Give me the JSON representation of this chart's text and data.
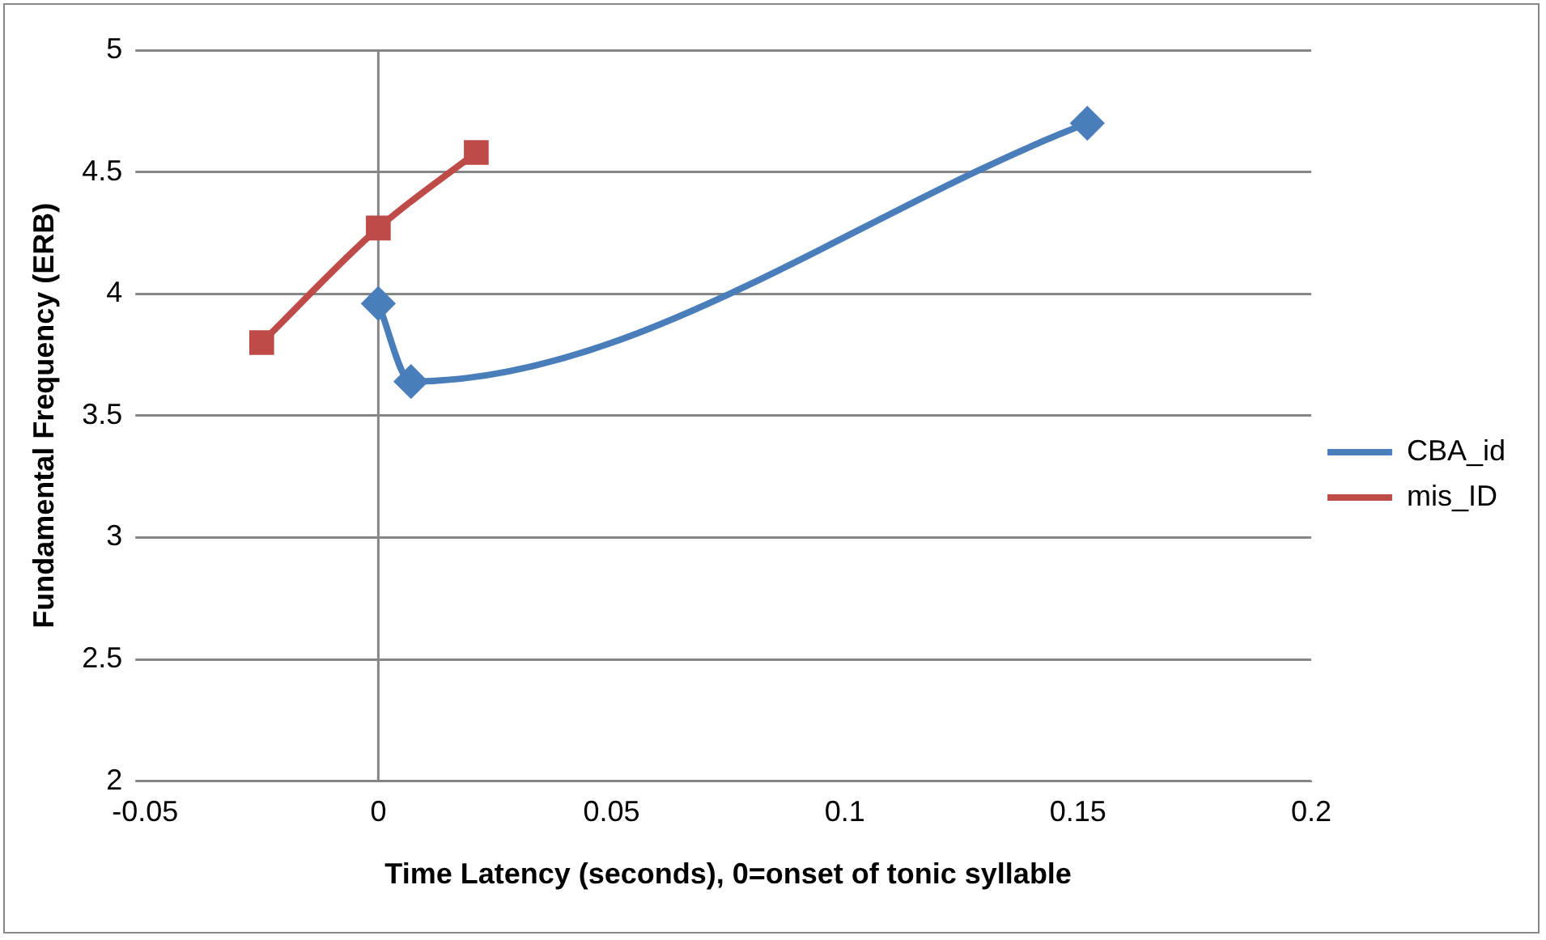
{
  "chart_data": {
    "type": "line",
    "xlabel": "Time Latency (seconds), 0=onset of tonic syllable",
    "ylabel": "Fundamental Frequency (ERB)",
    "series": [
      {
        "name": "CBA_id",
        "color": "#4a7ebb",
        "marker": "diamond",
        "x": [
          0,
          0.007,
          0.152
        ],
        "values": [
          3.96,
          3.64,
          4.7
        ]
      },
      {
        "name": "mis_ID",
        "color": "#be4b48",
        "marker": "square",
        "x": [
          -0.025,
          0,
          0.021
        ],
        "values": [
          3.8,
          4.27,
          4.58
        ]
      }
    ],
    "xlim": [
      -0.05,
      0.2
    ],
    "xticks": [
      -0.05,
      0,
      0.05,
      0.1,
      0.15,
      0.2
    ],
    "ylim": [
      2,
      5
    ],
    "yticks": [
      2,
      2.5,
      3,
      3.5,
      4,
      4.5,
      5
    ],
    "ref_lines": [
      {
        "axis": "x",
        "value": 0,
        "color": "#868686"
      }
    ],
    "grid": "y",
    "legend": "right",
    "line_style": "solid"
  }
}
